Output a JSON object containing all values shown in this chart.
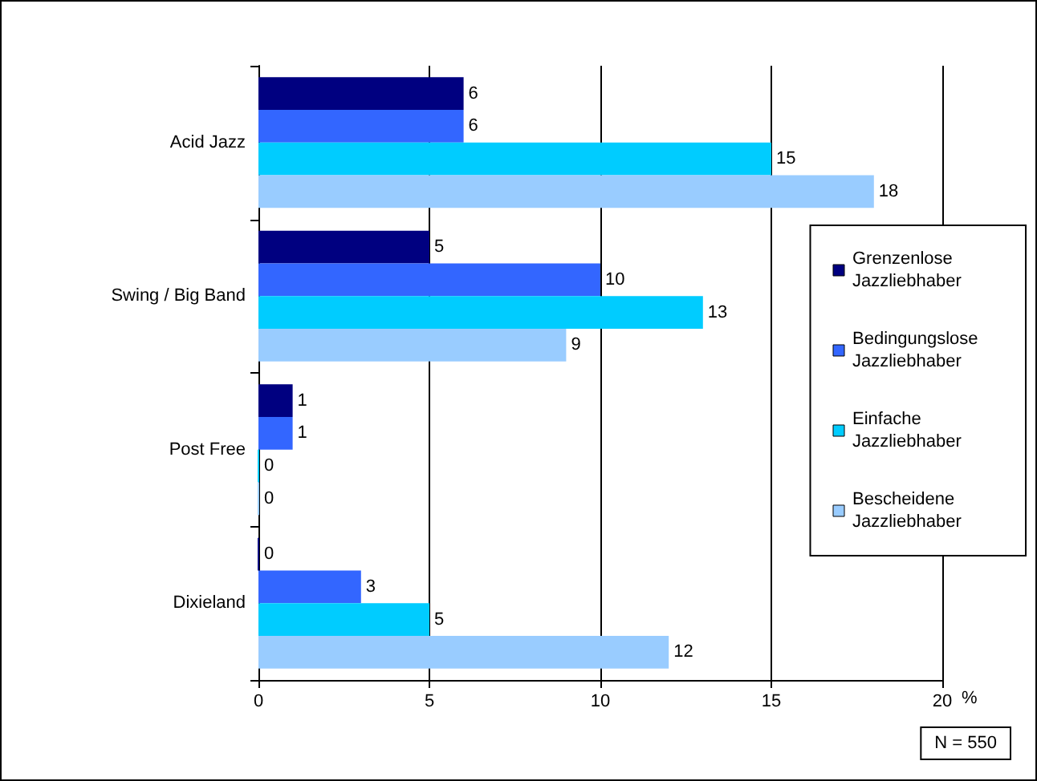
{
  "chart_data": {
    "type": "bar",
    "orientation": "horizontal",
    "xlabel": "%",
    "categories": [
      "Acid Jazz",
      "Swing / Big Band",
      "Post Free",
      "Dixieland"
    ],
    "series": [
      {
        "name": "Grenzenlose Jazzliebhaber",
        "color": "#000080",
        "values": [
          6,
          5,
          1,
          0
        ]
      },
      {
        "name": "Bedingungslose Jazzliebhaber",
        "color": "#3366ff",
        "values": [
          6,
          10,
          1,
          3
        ]
      },
      {
        "name": "Einfache Jazzliebhaber",
        "color": "#00ccff",
        "values": [
          15,
          13,
          0,
          5
        ]
      },
      {
        "name": "Bescheidene Jazzliebhaber",
        "color": "#99ccff",
        "values": [
          18,
          9,
          0,
          12
        ]
      }
    ],
    "xlim": [
      0,
      20
    ],
    "xticks": [
      0,
      5,
      10,
      15,
      20
    ],
    "grid": "x",
    "legend": "right",
    "data_labels": true,
    "annotations": [
      "N = 550"
    ]
  }
}
